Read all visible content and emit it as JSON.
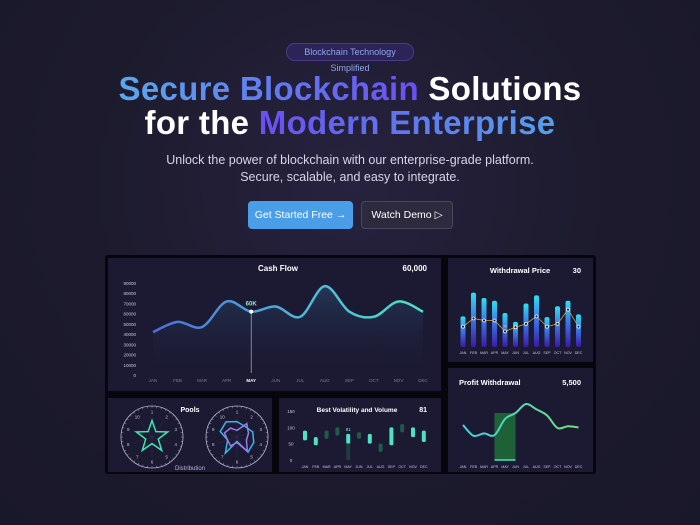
{
  "hero": {
    "badge": "Blockchain Technology Simplified",
    "title_line1_a": "Secure Blockchain",
    "title_line1_b": "Solutions",
    "title_line2_a": "for the",
    "title_line2_b": "Modern Enterprise",
    "subtitle": "Unlock the power of blockchain with our enterprise-grade platform. Secure, scalable, and easy to integrate.",
    "primary_button": "Get Started Free",
    "primary_icon": "arrow-right-icon",
    "secondary_button": "Watch Demo",
    "secondary_icon": "play-icon"
  },
  "colors": {
    "accent": "#4a9ee8",
    "purple": "#6a4ff0",
    "teal": "#4be3c4",
    "panel": "#1c1a33"
  },
  "dashboard": {
    "months": [
      "JAN",
      "FEB",
      "MAR",
      "APR",
      "MAY",
      "JUN",
      "JUL",
      "AUG",
      "SEP",
      "OCT",
      "NOV",
      "DEC"
    ],
    "cash_flow": {
      "title": "Cash Flow",
      "total": "60,000",
      "highlight_label": "60K",
      "highlight_month": "MAY",
      "y_ticks": [
        "0",
        "10000",
        "20000",
        "30000",
        "40000",
        "50000",
        "60000",
        "70000",
        "80000",
        "90000"
      ],
      "values": [
        40000,
        50000,
        45000,
        70000,
        60000,
        65000,
        55000,
        85000,
        60000,
        55000,
        70000,
        60000
      ]
    },
    "withdrawal_price": {
      "title": "Withdrawal Price",
      "value": "30",
      "marker_label": "30",
      "bars": [
        0.45,
        0.8,
        0.72,
        0.68,
        0.5,
        0.37,
        0.64,
        0.76,
        0.44,
        0.6,
        0.68,
        0.48
      ],
      "line": [
        0.3,
        0.42,
        0.39,
        0.39,
        0.23,
        0.29,
        0.34,
        0.45,
        0.3,
        0.34,
        0.55,
        0.3
      ]
    },
    "profit_withdrawal": {
      "title": "Profit Withdrawal",
      "value": "5,500",
      "highlight": [
        "APR",
        "MAY",
        "JUN"
      ],
      "values": [
        0.5,
        0.32,
        0.36,
        0.33,
        0.6,
        0.7,
        0.85,
        0.76,
        0.66,
        0.45,
        0.48,
        0.46
      ]
    },
    "pools": {
      "title": "Pools",
      "caption": "Distribution",
      "axis_labels": [
        "1",
        "2",
        "3",
        "4",
        "5",
        "6",
        "7",
        "8",
        "9",
        "10"
      ],
      "star": [
        0.75,
        0.3,
        0.75,
        0.3,
        0.75,
        0.3,
        0.75,
        0.3,
        0.75,
        0.3
      ],
      "radar_a": [
        0.7,
        0.6,
        0.75,
        0.8,
        0.85,
        0.2,
        0.9,
        0.45,
        0.8,
        0.85
      ],
      "radar_b": [
        0.3,
        0.75,
        0.55,
        0.45,
        0.8,
        0.25,
        0.5,
        0.45,
        0.6,
        0.5
      ]
    },
    "volatility": {
      "title": "Best Volatility and Volume",
      "value": "81",
      "marker_label": "81",
      "y_ticks": [
        "0",
        "50",
        "100",
        "150"
      ],
      "ranges": [
        [
          60,
          90
        ],
        [
          45,
          70
        ],
        [
          65,
          90
        ],
        [
          75,
          100
        ],
        [
          50,
          80
        ],
        [
          65,
          85
        ],
        [
          50,
          80
        ],
        [
          25,
          50
        ],
        [
          45,
          100
        ],
        [
          85,
          110
        ],
        [
          70,
          100
        ],
        [
          55,
          90
        ]
      ],
      "dim": [
        false,
        false,
        true,
        true,
        false,
        true,
        false,
        true,
        false,
        true,
        false,
        false
      ]
    }
  }
}
